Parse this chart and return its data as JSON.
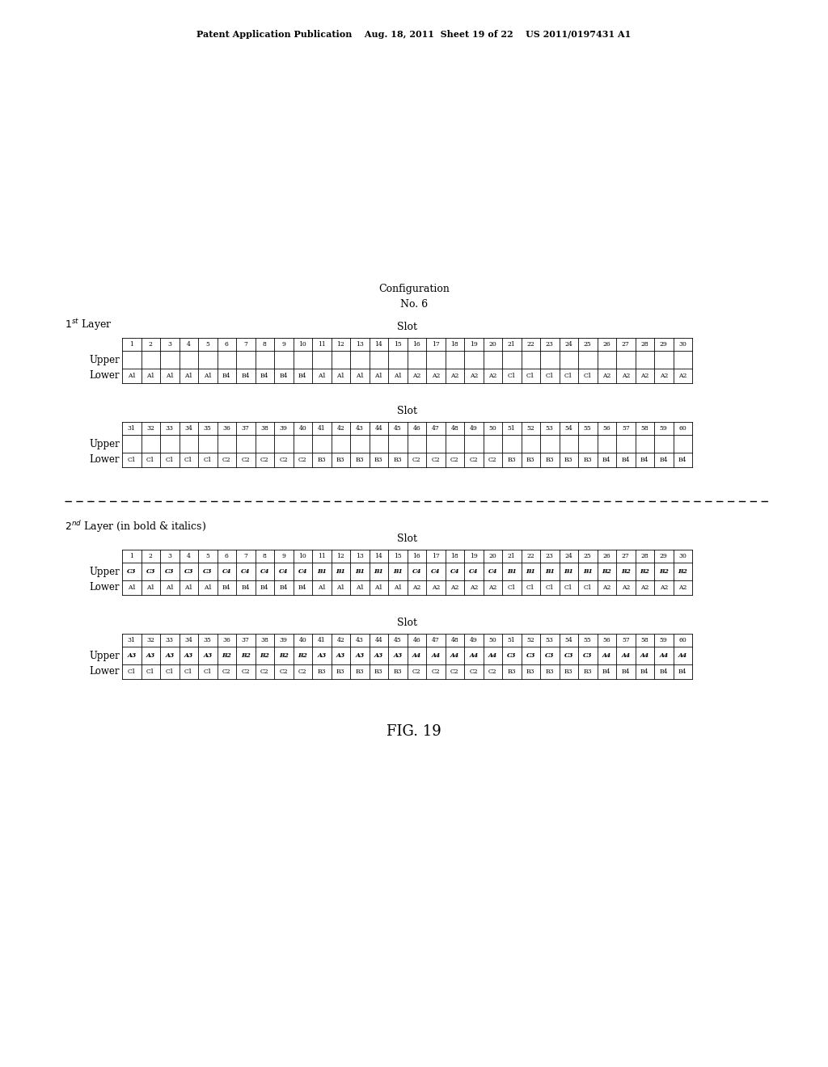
{
  "header": "Patent Application Publication    Aug. 18, 2011  Sheet 19 of 22    US 2011/0197431 A1",
  "config_line1": "Configuration",
  "config_line2": "No. 6",
  "fig_label": "FIG. 19",
  "layer1_label_normal": " Layer",
  "layer2_label_normal": " Layer (in bold & italics)",
  "layer1_table1": {
    "slots": [
      1,
      2,
      3,
      4,
      5,
      6,
      7,
      8,
      9,
      10,
      11,
      12,
      13,
      14,
      15,
      16,
      17,
      18,
      19,
      20,
      21,
      22,
      23,
      24,
      25,
      26,
      27,
      28,
      29,
      30
    ],
    "upper": [
      "",
      "",
      "",
      "",
      "",
      "",
      "",
      "",
      "",
      "",
      "",
      "",
      "",
      "",
      "",
      "",
      "",
      "",
      "",
      "",
      "",
      "",
      "",
      "",
      "",
      "",
      "",
      "",
      "",
      ""
    ],
    "lower": [
      "A1",
      "A1",
      "A1",
      "A1",
      "A1",
      "B4",
      "B4",
      "B4",
      "B4",
      "B4",
      "A1",
      "A1",
      "A1",
      "A1",
      "A1",
      "A2",
      "A2",
      "A2",
      "A2",
      "A2",
      "C1",
      "C1",
      "C1",
      "C1",
      "C1",
      "A2",
      "A2",
      "A2",
      "A2",
      "A2"
    ]
  },
  "layer1_table2": {
    "slots": [
      31,
      32,
      33,
      34,
      35,
      36,
      37,
      38,
      39,
      40,
      41,
      42,
      43,
      44,
      45,
      46,
      47,
      48,
      49,
      50,
      51,
      52,
      53,
      54,
      55,
      56,
      57,
      58,
      59,
      60
    ],
    "upper": [
      "",
      "",
      "",
      "",
      "",
      "",
      "",
      "",
      "",
      "",
      "",
      "",
      "",
      "",
      "",
      "",
      "",
      "",
      "",
      "",
      "",
      "",
      "",
      "",
      "",
      "",
      "",
      "",
      "",
      ""
    ],
    "lower": [
      "C1",
      "C1",
      "C1",
      "C1",
      "C1",
      "C2",
      "C2",
      "C2",
      "C2",
      "C2",
      "B3",
      "B3",
      "B3",
      "B3",
      "B3",
      "C2",
      "C2",
      "C2",
      "C2",
      "C2",
      "B3",
      "B3",
      "B3",
      "B3",
      "B3",
      "B4",
      "B4",
      "B4",
      "B4",
      "B4"
    ]
  },
  "layer2_table1": {
    "slots": [
      1,
      2,
      3,
      4,
      5,
      6,
      7,
      8,
      9,
      10,
      11,
      12,
      13,
      14,
      15,
      16,
      17,
      18,
      19,
      20,
      21,
      22,
      23,
      24,
      25,
      26,
      27,
      28,
      29,
      30
    ],
    "upper": [
      "C3",
      "C3",
      "C3",
      "C3",
      "C3",
      "C4",
      "C4",
      "C4",
      "C4",
      "C4",
      "B1",
      "B1",
      "B1",
      "B1",
      "B1",
      "C4",
      "C4",
      "C4",
      "C4",
      "C4",
      "B1",
      "B1",
      "B1",
      "B1",
      "B1",
      "B2",
      "B2",
      "B2",
      "B2",
      "B2"
    ],
    "lower": [
      "A1",
      "A1",
      "A1",
      "A1",
      "A1",
      "B4",
      "B4",
      "B4",
      "B4",
      "B4",
      "A1",
      "A1",
      "A1",
      "A1",
      "A1",
      "A2",
      "A2",
      "A2",
      "A2",
      "A2",
      "C1",
      "C1",
      "C1",
      "C1",
      "C1",
      "A2",
      "A2",
      "A2",
      "A2",
      "A2"
    ]
  },
  "layer2_table2": {
    "slots": [
      31,
      32,
      33,
      34,
      35,
      36,
      37,
      38,
      39,
      40,
      41,
      42,
      43,
      44,
      45,
      46,
      47,
      48,
      49,
      50,
      51,
      52,
      53,
      54,
      55,
      56,
      57,
      58,
      59,
      60
    ],
    "upper": [
      "A3",
      "A3",
      "A3",
      "A3",
      "A3",
      "B2",
      "B2",
      "B2",
      "B2",
      "B2",
      "A3",
      "A3",
      "A3",
      "A3",
      "A3",
      "A4",
      "A4",
      "A4",
      "A4",
      "A4",
      "C3",
      "C3",
      "C3",
      "C3",
      "C3",
      "A4",
      "A4",
      "A4",
      "A4",
      "A4"
    ],
    "lower": [
      "C1",
      "C1",
      "C1",
      "C1",
      "C1",
      "C2",
      "C2",
      "C2",
      "C2",
      "C2",
      "B3",
      "B3",
      "B3",
      "B3",
      "B3",
      "C2",
      "C2",
      "C2",
      "C2",
      "C2",
      "B3",
      "B3",
      "B3",
      "B3",
      "B3",
      "B4",
      "B4",
      "B4",
      "B4",
      "B4"
    ]
  }
}
